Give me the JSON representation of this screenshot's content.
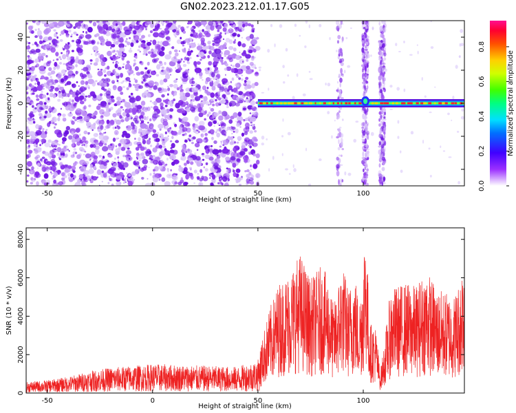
{
  "figure": {
    "title": "GN02.2023.212.01.17.G05"
  },
  "colors": {
    "snr_line": "#ee2222",
    "heatmap_noise": "#7a1fe6",
    "axis": "#000000"
  },
  "chart_data": [
    {
      "type": "heatmap",
      "xlabel": "Height of straight line (km)",
      "ylabel": "Frequency (Hz)",
      "xlim": [
        -60,
        148
      ],
      "ylim": [
        -50,
        50
      ],
      "xticks": [
        -50,
        0,
        50,
        100
      ],
      "yticks": [
        -40,
        -20,
        0,
        20,
        40
      ],
      "colorbar": {
        "label": "Normalized spectral amplitude",
        "range": [
          0,
          0.95
        ],
        "ticks": [
          "0.0",
          "0.2",
          "0.4",
          "0.6",
          "0.8"
        ],
        "colormap": "rainbow"
      },
      "features": [
        {
          "kind": "broadband_noise",
          "x_range": [
            -60,
            50
          ],
          "amplitude": 0.2
        },
        {
          "kind": "carrier_line",
          "x_range": [
            50,
            148
          ],
          "frequency": 0,
          "amplitude": 0.9
        },
        {
          "kind": "vertical_noise_band",
          "x": 101,
          "amplitude": 0.3
        },
        {
          "kind": "vertical_noise_band",
          "x": 109,
          "amplitude": 0.3
        },
        {
          "kind": "vertical_noise_band",
          "x": 89,
          "amplitude": 0.1
        }
      ]
    },
    {
      "type": "line",
      "xlabel": "Height of straight line (km)",
      "ylabel": "SNR (10 * v/v)",
      "xlim": [
        -60,
        148
      ],
      "ylim": [
        0,
        8600
      ],
      "xticks": [
        -50,
        0,
        50,
        100
      ],
      "yticks": [
        0,
        2000,
        4000,
        6000,
        8000
      ],
      "series": [
        {
          "x": [
            -60,
            -50,
            -40,
            -30,
            -20,
            -10,
            0,
            10,
            20,
            30,
            40,
            50,
            53,
            56,
            60,
            65,
            70,
            75,
            80,
            83,
            86,
            90,
            93,
            96,
            98,
            100,
            101,
            103,
            106,
            108,
            110,
            113,
            116,
            120,
            125,
            130,
            135,
            140,
            143,
            146,
            148
          ],
          "y": [
            300,
            350,
            450,
            600,
            700,
            750,
            800,
            780,
            760,
            740,
            720,
            900,
            1900,
            2600,
            3300,
            3600,
            4200,
            3400,
            3800,
            3500,
            2600,
            3900,
            3100,
            3600,
            2700,
            3900,
            5500,
            2100,
            2000,
            600,
            1500,
            3100,
            3200,
            3300,
            3200,
            3700,
            3100,
            3000,
            2900,
            3400,
            4500
          ]
        }
      ]
    }
  ]
}
